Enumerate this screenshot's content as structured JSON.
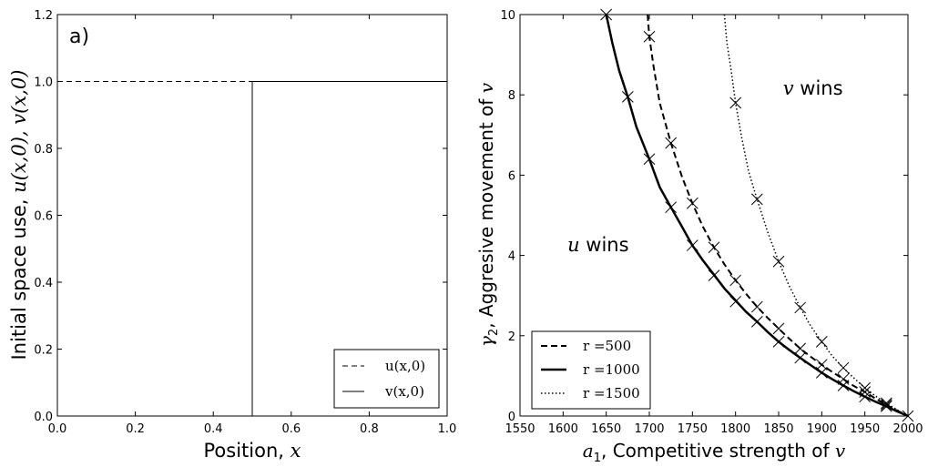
{
  "chart_data": [
    {
      "type": "line",
      "panel_label": "a)",
      "xlabel_text": "Position, ",
      "xlabel_var": "x",
      "ylabel_text": "Initial space use, ",
      "ylabel_var": "u(x,0), v(x,0)",
      "xlim": [
        0,
        1.0
      ],
      "ylim": [
        0,
        1.2
      ],
      "xticks": [
        "0.0",
        "0.2",
        "0.4",
        "0.6",
        "0.8",
        "1.0"
      ],
      "yticks": [
        "0.0",
        "0.2",
        "0.4",
        "0.6",
        "0.8",
        "1.0",
        "1.2"
      ],
      "legend_position": "lower-right",
      "series": [
        {
          "name": "u(x,0)",
          "style": "dashed",
          "x": [
            0.0,
            0.5,
            0.5
          ],
          "y": [
            1.0,
            1.0,
            0.0
          ]
        },
        {
          "name": "v(x,0)",
          "style": "solid",
          "x": [
            0.5,
            0.5,
            1.0
          ],
          "y": [
            0.0,
            1.0,
            1.0
          ]
        }
      ]
    },
    {
      "type": "line",
      "xlabel_prefix": "a",
      "xlabel_sub": "1",
      "xlabel_text": ", Competitive strength of ",
      "xlabel_var": "v",
      "ylabel_prefix": "γ",
      "ylabel_sub": "2",
      "ylabel_text": ", Aggresive movement of ",
      "ylabel_var": "v",
      "xlim": [
        1550,
        2000
      ],
      "ylim": [
        0,
        10
      ],
      "xticks": [
        "1550",
        "1600",
        "1650",
        "1700",
        "1750",
        "1800",
        "1850",
        "1900",
        "1950",
        "2000"
      ],
      "yticks": [
        "0",
        "2",
        "4",
        "6",
        "8",
        "10"
      ],
      "legend_position": "lower-left",
      "annotations": [
        {
          "var": "v",
          "text": " wins",
          "x": 1855,
          "y": 8.0
        },
        {
          "var": "u",
          "text": " wins",
          "x": 1605,
          "y": 4.1
        }
      ],
      "series": [
        {
          "name": "r =500",
          "style": "dashed",
          "x": [
            1698,
            1700,
            1705,
            1712,
            1725,
            1738,
            1750,
            1762,
            1775,
            1787,
            1800,
            1812,
            1825,
            1837,
            1850,
            1862,
            1875,
            1887,
            1900,
            1912,
            1925,
            1937,
            1950,
            1962,
            1975,
            1987,
            2000
          ],
          "y": [
            10.0,
            9.45,
            8.7,
            7.8,
            6.8,
            5.95,
            5.3,
            4.72,
            4.2,
            3.78,
            3.38,
            3.05,
            2.72,
            2.45,
            2.18,
            1.93,
            1.68,
            1.48,
            1.28,
            1.1,
            0.92,
            0.75,
            0.6,
            0.44,
            0.28,
            0.14,
            0.0
          ]
        },
        {
          "name": "r =1000",
          "style": "solid",
          "x": [
            1650,
            1657,
            1665,
            1675,
            1685,
            1700,
            1712,
            1725,
            1737,
            1750,
            1762,
            1775,
            1787,
            1800,
            1812,
            1825,
            1837,
            1850,
            1862,
            1875,
            1887,
            1900,
            1912,
            1925,
            1937,
            1950,
            1962,
            1975,
            1987,
            2000
          ],
          "y": [
            10.0,
            9.3,
            8.6,
            7.95,
            7.2,
            6.4,
            5.7,
            5.2,
            4.75,
            4.25,
            3.88,
            3.52,
            3.18,
            2.88,
            2.6,
            2.35,
            2.1,
            1.85,
            1.65,
            1.45,
            1.27,
            1.08,
            0.92,
            0.76,
            0.62,
            0.48,
            0.36,
            0.24,
            0.12,
            0.0
          ]
        },
        {
          "name": "r =1500",
          "style": "dotted",
          "x": [
            1787,
            1790,
            1795,
            1800,
            1807,
            1815,
            1825,
            1837,
            1850,
            1862,
            1875,
            1887,
            1900,
            1912,
            1925,
            1937,
            1950,
            1962,
            1975,
            1987,
            2000
          ],
          "y": [
            10.0,
            9.3,
            8.6,
            7.8,
            6.95,
            6.1,
            5.4,
            4.6,
            3.85,
            3.25,
            2.7,
            2.25,
            1.85,
            1.5,
            1.2,
            0.95,
            0.7,
            0.5,
            0.32,
            0.16,
            0.0
          ]
        }
      ],
      "markers": [
        [
          1650,
          10.0
        ],
        [
          1675,
          7.95
        ],
        [
          1700,
          6.4
        ],
        [
          1725,
          5.2
        ],
        [
          1750,
          4.25
        ],
        [
          1775,
          3.5
        ],
        [
          1800,
          2.85
        ],
        [
          1825,
          2.35
        ],
        [
          1850,
          1.85
        ],
        [
          1875,
          1.45
        ],
        [
          1900,
          1.08
        ],
        [
          1925,
          0.76
        ],
        [
          1950,
          0.48
        ],
        [
          1975,
          0.24
        ],
        [
          2000,
          0.0
        ],
        [
          1700,
          9.45
        ],
        [
          1725,
          6.8
        ],
        [
          1750,
          5.3
        ],
        [
          1775,
          4.2
        ],
        [
          1800,
          3.38
        ],
        [
          1825,
          2.72
        ],
        [
          1850,
          2.18
        ],
        [
          1875,
          1.68
        ],
        [
          1900,
          1.28
        ],
        [
          1925,
          0.92
        ],
        [
          1950,
          0.6
        ],
        [
          1975,
          0.28
        ],
        [
          1800,
          7.8
        ],
        [
          1825,
          5.4
        ],
        [
          1850,
          3.85
        ],
        [
          1875,
          2.7
        ],
        [
          1900,
          1.85
        ],
        [
          1925,
          1.2
        ],
        [
          1950,
          0.7
        ],
        [
          1975,
          0.32
        ]
      ]
    }
  ]
}
